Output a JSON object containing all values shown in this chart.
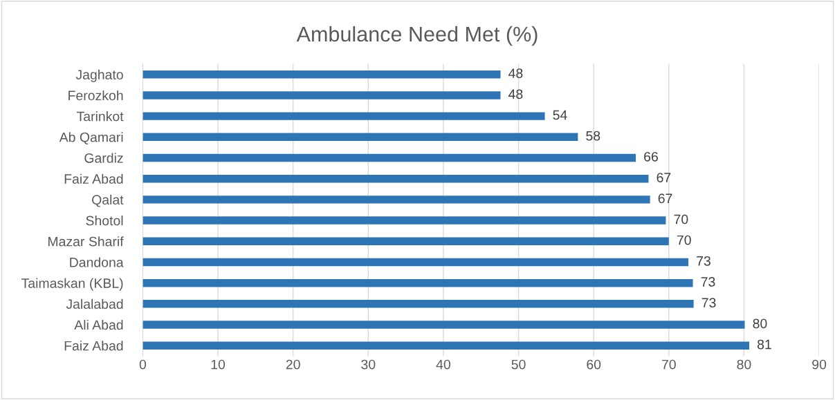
{
  "chart_data": {
    "type": "bar",
    "orientation": "horizontal",
    "title": "Ambulance Need Met (%)",
    "categories": [
      "Jaghato",
      "Ferozkoh",
      "Tarinkot",
      "Ab Qamari",
      "Gardiz",
      "Faiz Abad",
      "Qalat",
      "Shotol",
      "Mazar Sharif",
      "Dandona",
      "Taimaskan (KBL)",
      "Jalalabad",
      "Ali Abad",
      "Faiz Abad"
    ],
    "values": [
      47.6,
      47.6,
      53.5,
      57.9,
      65.6,
      67.3,
      67.5,
      69.6,
      70.0,
      72.6,
      73.2,
      73.3,
      80.1,
      80.7
    ],
    "value_labels": [
      "48",
      "48",
      "54",
      "58",
      "66",
      "67",
      "67",
      "70",
      "70",
      "73",
      "73",
      "73",
      "80",
      "81"
    ],
    "color": "#2e75b6",
    "xlim": [
      0,
      90
    ],
    "xticks": [
      0,
      10,
      20,
      30,
      40,
      50,
      60,
      70,
      80,
      90
    ],
    "grid": "x",
    "legend": false
  }
}
